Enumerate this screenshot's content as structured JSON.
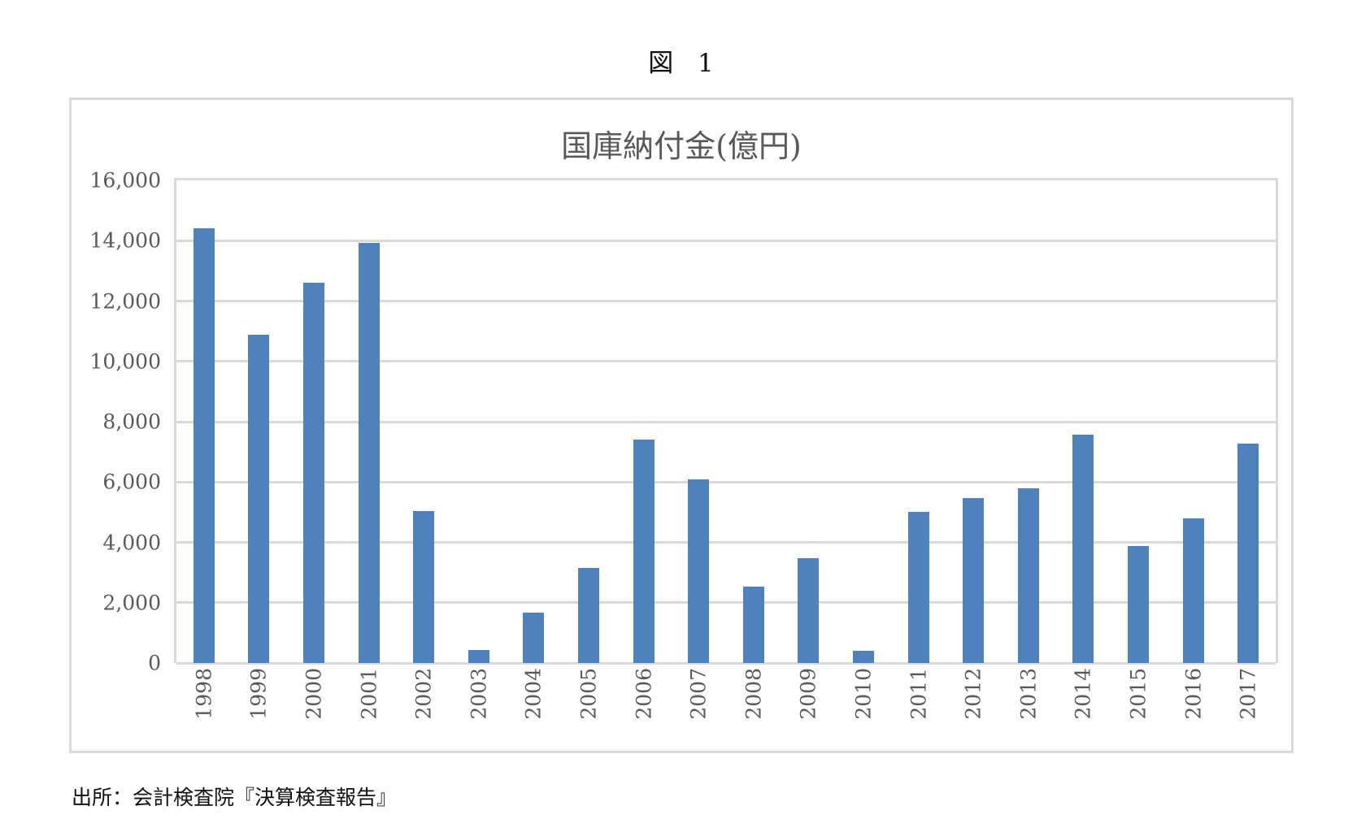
{
  "figure": {
    "label": "図 1",
    "source": "出所：会計検査院『決算検査報告』"
  },
  "chart_data": {
    "type": "bar",
    "title": "国庫納付金(億円)",
    "xlabel": "",
    "ylabel": "",
    "ylim": [
      0,
      16000
    ],
    "yticks": [
      "0",
      "2,000",
      "4,000",
      "6,000",
      "8,000",
      "10,000",
      "12,000",
      "14,000",
      "16,000"
    ],
    "grid": true,
    "legend": null,
    "bar_color": "#4f81bd",
    "categories": [
      "1998",
      "1999",
      "2000",
      "2001",
      "2002",
      "2003",
      "2004",
      "2005",
      "2006",
      "2007",
      "2008",
      "2009",
      "2010",
      "2011",
      "2012",
      "2013",
      "2014",
      "2015",
      "2016",
      "2017"
    ],
    "values": [
      14400,
      10880,
      12610,
      13930,
      5050,
      440,
      1660,
      3150,
      7420,
      6080,
      2530,
      3470,
      410,
      5020,
      5470,
      5790,
      7580,
      3890,
      4800,
      7260
    ]
  }
}
